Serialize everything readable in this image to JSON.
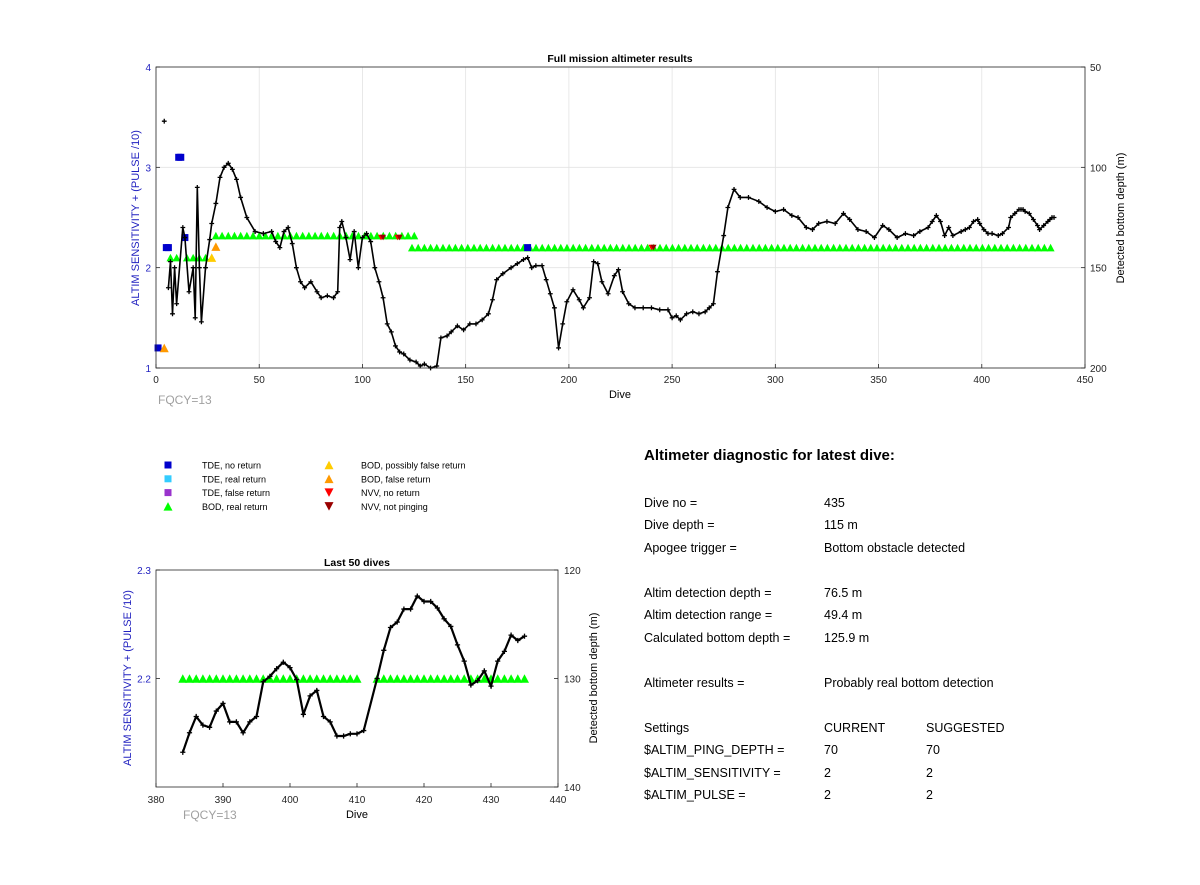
{
  "colors": {
    "left_axis": "#1f1fbf",
    "bod_real": "#00ff00",
    "bod_false": "#ff9900",
    "bod_possibly_false": "#ffcc00",
    "tde_no_return": "#0000cc",
    "tde_real": "#33ccff",
    "tde_false": "#9933cc",
    "nvv_no_return": "#ff0000",
    "nvv_not_pinging": "#990000",
    "fqcy_text": "#a0a0a0"
  },
  "legend": {
    "items": [
      {
        "label": "TDE, no return",
        "marker": "square",
        "color": "#0000cc"
      },
      {
        "label": "TDE, real return",
        "marker": "square",
        "color": "#33ccff"
      },
      {
        "label": "TDE, false return",
        "marker": "square",
        "color": "#9933cc"
      },
      {
        "label": "BOD, real return",
        "marker": "triangle-up",
        "color": "#00ff00"
      },
      {
        "label": "BOD, possibly false return",
        "marker": "triangle-up",
        "color": "#ffcc00"
      },
      {
        "label": "BOD, false return",
        "marker": "triangle-up",
        "color": "#ff9900"
      },
      {
        "label": "NVV, no return",
        "marker": "triangle-down",
        "color": "#ff0000"
      },
      {
        "label": "NVV, not pinging",
        "marker": "triangle-down",
        "color": "#990000"
      }
    ]
  },
  "diagnostic": {
    "title": "Altimeter diagnostic for latest dive:",
    "rows": [
      {
        "label": "Dive no =",
        "value": "435"
      },
      {
        "label": "Dive depth =",
        "value": "115 m"
      },
      {
        "label": "Apogee trigger =",
        "value": "Bottom obstacle detected"
      },
      {
        "label": "Altim detection depth =",
        "value": "76.5 m"
      },
      {
        "label": "Altim detection range =",
        "value": "49.4 m"
      },
      {
        "label": "Calculated bottom depth =",
        "value": "125.9 m"
      },
      {
        "label": "Altimeter results =",
        "value": "Probably real bottom detection"
      }
    ],
    "settings": {
      "header": [
        "Settings",
        "CURRENT",
        "SUGGESTED"
      ],
      "rows": [
        [
          "$ALTIM_PING_DEPTH =",
          "70",
          "70"
        ],
        [
          "$ALTIM_SENSITIVITY =",
          "2",
          "2"
        ],
        [
          "$ALTIM_PULSE =",
          "2",
          "2"
        ]
      ]
    }
  },
  "chart_data": [
    {
      "type": "scatter",
      "title": "Full mission altimeter results",
      "xlabel": "Dive",
      "ylabel": "ALTIM SENSITIVITY + (PULSE /10)",
      "y2label": "Detected bottom depth (m)",
      "annotation": "FQCY=13",
      "xlim": [
        0,
        450
      ],
      "ylim": [
        1,
        4
      ],
      "y2lim": [
        200,
        50
      ],
      "y2_reversed": true,
      "xticks": [
        0,
        50,
        100,
        150,
        200,
        250,
        300,
        350,
        400,
        450
      ],
      "yticks": [
        1,
        2,
        3,
        4
      ],
      "y2ticks": [
        50,
        100,
        150,
        200
      ],
      "grid": true,
      "bod_real_segments": [
        {
          "x": [
            7,
            11
          ],
          "y": 2.1
        },
        {
          "x": [
            15,
            27
          ],
          "y": 2.1
        },
        {
          "x": [
            29,
            126
          ],
          "y": 2.32
        },
        {
          "x": [
            124,
            436
          ],
          "y": 2.2
        }
      ],
      "markers": [
        {
          "x": 1,
          "y": 1.2,
          "kind": "tde_no_return"
        },
        {
          "x": 4,
          "y": 1.2,
          "kind": "bod_false"
        },
        {
          "x": 5,
          "y": 2.2,
          "kind": "tde_no_return"
        },
        {
          "x": 6,
          "y": 2.2,
          "kind": "tde_no_return"
        },
        {
          "x": 11,
          "y": 3.1,
          "kind": "tde_no_return"
        },
        {
          "x": 12,
          "y": 3.1,
          "kind": "tde_no_return"
        },
        {
          "x": 14,
          "y": 2.3,
          "kind": "tde_no_return"
        },
        {
          "x": 27,
          "y": 2.1,
          "kind": "bod_possibly_false"
        },
        {
          "x": 29,
          "y": 2.21,
          "kind": "bod_false"
        },
        {
          "x": 109,
          "y": 2.3,
          "kind": "nvv_no_return"
        },
        {
          "x": 110,
          "y": 2.3,
          "kind": "nvv_not_pinging"
        },
        {
          "x": 117,
          "y": 2.3,
          "kind": "nvv_no_return"
        },
        {
          "x": 118,
          "y": 2.3,
          "kind": "nvv_not_pinging"
        },
        {
          "x": 180,
          "y": 2.2,
          "kind": "tde_no_return"
        },
        {
          "x": 240,
          "y": 2.2,
          "kind": "nvv_no_return"
        },
        {
          "x": 241,
          "y": 2.2,
          "kind": "nvv_not_pinging"
        }
      ],
      "bottom_depth_track": [
        [
          4,
          77
        ],
        [
          6,
          160
        ],
        [
          7,
          147
        ],
        [
          8,
          173
        ],
        [
          9,
          150
        ],
        [
          10,
          168
        ],
        [
          13,
          130
        ],
        [
          14,
          135
        ],
        [
          16,
          162
        ],
        [
          18,
          150
        ],
        [
          19,
          175
        ],
        [
          20,
          110
        ],
        [
          21,
          150
        ],
        [
          22,
          177
        ],
        [
          24,
          150
        ],
        [
          26,
          136
        ],
        [
          27,
          128
        ],
        [
          29,
          118
        ],
        [
          31,
          105
        ],
        [
          33,
          100
        ],
        [
          35,
          98
        ],
        [
          37,
          101
        ],
        [
          39,
          106
        ],
        [
          41,
          115
        ],
        [
          44,
          125
        ],
        [
          48,
          132
        ],
        [
          52,
          133
        ],
        [
          56,
          132
        ],
        [
          58,
          137
        ],
        [
          60,
          140
        ],
        [
          62,
          132
        ],
        [
          64,
          130
        ],
        [
          66,
          138
        ],
        [
          68,
          150
        ],
        [
          70,
          157
        ],
        [
          72,
          160
        ],
        [
          75,
          157
        ],
        [
          78,
          162
        ],
        [
          80,
          165
        ],
        [
          83,
          164
        ],
        [
          86,
          165
        ],
        [
          88,
          162
        ],
        [
          89,
          130
        ],
        [
          90,
          127
        ],
        [
          92,
          135
        ],
        [
          94,
          146
        ],
        [
          96,
          132
        ],
        [
          98,
          150
        ],
        [
          100,
          135
        ],
        [
          102,
          133
        ],
        [
          104,
          137
        ],
        [
          106,
          150
        ],
        [
          108,
          157
        ],
        [
          110,
          165
        ],
        [
          112,
          178
        ],
        [
          114,
          182
        ],
        [
          116,
          189
        ],
        [
          118,
          192
        ],
        [
          120,
          193
        ],
        [
          123,
          196
        ],
        [
          126,
          197
        ],
        [
          128,
          199
        ],
        [
          130,
          198
        ],
        [
          133,
          200
        ],
        [
          136,
          199
        ],
        [
          138,
          185
        ],
        [
          141,
          184
        ],
        [
          143,
          182
        ],
        [
          146,
          179
        ],
        [
          149,
          181
        ],
        [
          152,
          178
        ],
        [
          155,
          178
        ],
        [
          158,
          176
        ],
        [
          161,
          173
        ],
        [
          163,
          166
        ],
        [
          165,
          156
        ],
        [
          168,
          153
        ],
        [
          172,
          150
        ],
        [
          175,
          148
        ],
        [
          178,
          146
        ],
        [
          180,
          145
        ],
        [
          182,
          150
        ],
        [
          184,
          149
        ],
        [
          187,
          149
        ],
        [
          189,
          156
        ],
        [
          191,
          163
        ],
        [
          193,
          170
        ],
        [
          195,
          190
        ],
        [
          197,
          178
        ],
        [
          199,
          167
        ],
        [
          202,
          161
        ],
        [
          205,
          166
        ],
        [
          207,
          170
        ],
        [
          210,
          165
        ],
        [
          212,
          147
        ],
        [
          214,
          148
        ],
        [
          216,
          157
        ],
        [
          219,
          163
        ],
        [
          222,
          154
        ],
        [
          224,
          151
        ],
        [
          226,
          162
        ],
        [
          229,
          168
        ],
        [
          232,
          170
        ],
        [
          236,
          170
        ],
        [
          240,
          170
        ],
        [
          244,
          171
        ],
        [
          248,
          171
        ],
        [
          250,
          175
        ],
        [
          252,
          174
        ],
        [
          254,
          176
        ],
        [
          257,
          173
        ],
        [
          260,
          172
        ],
        [
          263,
          173
        ],
        [
          266,
          172
        ],
        [
          268,
          170
        ],
        [
          270,
          168
        ],
        [
          272,
          152
        ],
        [
          275,
          134
        ],
        [
          277,
          120
        ],
        [
          280,
          111
        ],
        [
          283,
          115
        ],
        [
          287,
          115
        ],
        [
          292,
          117
        ],
        [
          296,
          120
        ],
        [
          300,
          122
        ],
        [
          304,
          121
        ],
        [
          308,
          124
        ],
        [
          311,
          125
        ],
        [
          315,
          130
        ],
        [
          318,
          131
        ],
        [
          321,
          128
        ],
        [
          325,
          127
        ],
        [
          329,
          128
        ],
        [
          333,
          123
        ],
        [
          336,
          126
        ],
        [
          340,
          131
        ],
        [
          344,
          132
        ],
        [
          348,
          135
        ],
        [
          352,
          129
        ],
        [
          355,
          131
        ],
        [
          359,
          135
        ],
        [
          363,
          133
        ],
        [
          367,
          134
        ],
        [
          370,
          132
        ],
        [
          374,
          130
        ],
        [
          376,
          127
        ],
        [
          378,
          124
        ],
        [
          380,
          127
        ],
        [
          382,
          134
        ],
        [
          384,
          130
        ],
        [
          386,
          134
        ],
        [
          390,
          132
        ],
        [
          392,
          131
        ],
        [
          394,
          130
        ],
        [
          396,
          127
        ],
        [
          398,
          126
        ],
        [
          399,
          128
        ],
        [
          401,
          131
        ],
        [
          403,
          133
        ],
        [
          405,
          133
        ],
        [
          408,
          134
        ],
        [
          410,
          133
        ],
        [
          413,
          130
        ],
        [
          414,
          125
        ],
        [
          416,
          123
        ],
        [
          418,
          121
        ],
        [
          419,
          121
        ],
        [
          420,
          121
        ],
        [
          421,
          122
        ],
        [
          423,
          123
        ],
        [
          425,
          126
        ],
        [
          427,
          129
        ],
        [
          428,
          131
        ],
        [
          430,
          129
        ],
        [
          432,
          127
        ],
        [
          433,
          126
        ],
        [
          434,
          125
        ],
        [
          435,
          125
        ]
      ]
    },
    {
      "type": "scatter",
      "title": "Last 50 dives",
      "xlabel": "Dive",
      "ylabel": "ALTIM SENSITIVITY + (PULSE /10)",
      "y2label": "Detected bottom depth (m)",
      "annotation": "FQCY=13",
      "xlim": [
        380,
        440
      ],
      "ylim": [
        2.1,
        2.3
      ],
      "y2lim": [
        140,
        120
      ],
      "y2_reversed": true,
      "xticks": [
        380,
        390,
        400,
        410,
        420,
        430,
        440
      ],
      "yticks": [
        2.2,
        2.3
      ],
      "y2ticks": [
        120,
        130,
        140
      ],
      "grid": false,
      "bod_real_dives": [
        384,
        385,
        386,
        387,
        388,
        389,
        390,
        391,
        392,
        393,
        394,
        395,
        396,
        397,
        398,
        399,
        400,
        401,
        402,
        403,
        404,
        405,
        406,
        407,
        408,
        409,
        410,
        413,
        414,
        415,
        416,
        417,
        418,
        419,
        420,
        421,
        422,
        423,
        424,
        425,
        426,
        427,
        428,
        429,
        430,
        431,
        432,
        433,
        434,
        435
      ],
      "bod_real_level": 2.2,
      "bottom_depth_track": [
        [
          384,
          136.8
        ],
        [
          385,
          135.0
        ],
        [
          386,
          133.5
        ],
        [
          387,
          134.3
        ],
        [
          388,
          134.5
        ],
        [
          389,
          133.0
        ],
        [
          390,
          132.3
        ],
        [
          391,
          134.0
        ],
        [
          392,
          134.0
        ],
        [
          393,
          135.0
        ],
        [
          394,
          134.0
        ],
        [
          395,
          133.5
        ],
        [
          396,
          130.3
        ],
        [
          397,
          129.8
        ],
        [
          398,
          129.1
        ],
        [
          399,
          128.5
        ],
        [
          400,
          129.0
        ],
        [
          401,
          130.1
        ],
        [
          402,
          133.3
        ],
        [
          403,
          131.6
        ],
        [
          404,
          131.1
        ],
        [
          405,
          133.5
        ],
        [
          406,
          134.0
        ],
        [
          407,
          135.3
        ],
        [
          408,
          135.3
        ],
        [
          409,
          135.1
        ],
        [
          410,
          135.1
        ],
        [
          411,
          134.8
        ],
        [
          413,
          130.0
        ],
        [
          414,
          127.4
        ],
        [
          415,
          125.3
        ],
        [
          416,
          124.8
        ],
        [
          417,
          123.6
        ],
        [
          418,
          123.6
        ],
        [
          419,
          122.4
        ],
        [
          420,
          122.9
        ],
        [
          421,
          122.9
        ],
        [
          422,
          123.5
        ],
        [
          423,
          124.5
        ],
        [
          424,
          125.2
        ],
        [
          425,
          126.9
        ],
        [
          426,
          128.4
        ],
        [
          427,
          130.6
        ],
        [
          428,
          130.2
        ],
        [
          429,
          129.3
        ],
        [
          430,
          130.7
        ],
        [
          431,
          128.4
        ],
        [
          432,
          127.5
        ],
        [
          433,
          126.0
        ],
        [
          434,
          126.5
        ],
        [
          435,
          126.1
        ]
      ]
    }
  ]
}
